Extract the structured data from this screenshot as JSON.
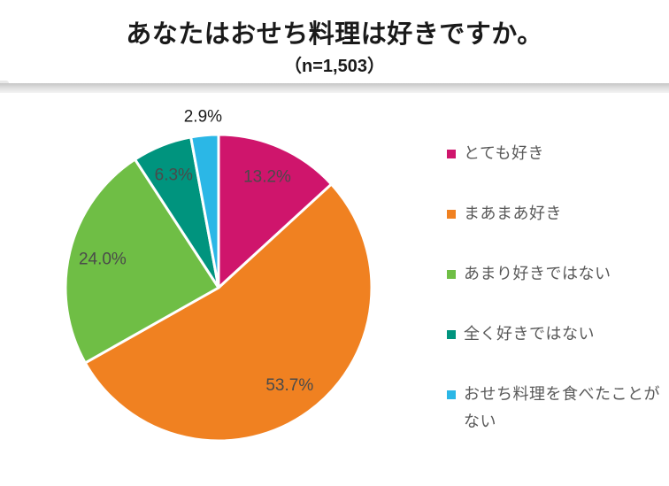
{
  "header": {
    "title": "あなたはおせち料理は好きですか。",
    "subtitle": "（n=1,503）"
  },
  "chart_data": {
    "type": "pie",
    "title": "あなたはおせち料理は好きですか。",
    "sample_size_label": "（n=1,503）",
    "start_angle_deg": 0,
    "direction": "clockwise",
    "value_suffix": "%",
    "legend_position": "right",
    "slice_gap_color": "#ffffff",
    "slices": [
      {
        "label": "とても好き",
        "value": 13.2,
        "color": "#CF156C",
        "label_color": "#4a4a4a",
        "label_r": 0.79
      },
      {
        "label": "まあまあ好き",
        "value": 53.7,
        "color": "#F08121",
        "label_color": "#4a4a4a",
        "label_r": 0.79
      },
      {
        "label": "あまり好きではない",
        "value": 24.0,
        "color": "#6FBE45",
        "label_color": "#4a4a4a",
        "label_r": 0.78
      },
      {
        "label": "全く好きではない",
        "value": 6.3,
        "color": "#00947E",
        "label_color": "#4a4a4a",
        "label_r": 0.79
      },
      {
        "label": "おせち料理を食べたことがない",
        "value": 2.9,
        "color": "#2BB7E6",
        "label_color": "#1a1a1a",
        "label_r": 1.12
      }
    ]
  }
}
